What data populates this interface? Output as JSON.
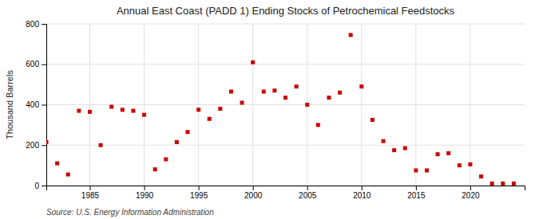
{
  "chart_data": {
    "type": "scatter",
    "title": "Annual East Coast (PADD 1) Ending Stocks of Petrochemical Feedstocks",
    "ylabel": "Thousand Barrels",
    "annotations": [
      "Source: U.S. Energy Information Administration"
    ],
    "color": "#cc0000",
    "marker": "square",
    "grid": true,
    "xlim": [
      1981,
      2025
    ],
    "ylim": [
      0,
      800
    ],
    "xticks": [
      1985,
      1990,
      1995,
      2000,
      2005,
      2010,
      2015,
      2020
    ],
    "yticks": [
      0,
      200,
      400,
      600,
      800
    ],
    "x": [
      1981,
      1982,
      1983,
      1984,
      1985,
      1986,
      1987,
      1988,
      1989,
      1990,
      1991,
      1992,
      1993,
      1994,
      1995,
      1996,
      1997,
      1998,
      1999,
      2000,
      2001,
      2002,
      2003,
      2004,
      2005,
      2006,
      2007,
      2008,
      2009,
      2010,
      2011,
      2012,
      2013,
      2014,
      2015,
      2016,
      2017,
      2018,
      2019,
      2020,
      2021,
      2022,
      2023,
      2024
    ],
    "values": [
      215,
      110,
      55,
      370,
      365,
      200,
      390,
      375,
      370,
      350,
      80,
      130,
      215,
      265,
      375,
      330,
      380,
      465,
      410,
      610,
      465,
      470,
      435,
      490,
      400,
      300,
      435,
      460,
      745,
      490,
      325,
      220,
      175,
      185,
      75,
      75,
      155,
      160,
      100,
      105,
      45,
      10,
      10,
      10
    ]
  }
}
